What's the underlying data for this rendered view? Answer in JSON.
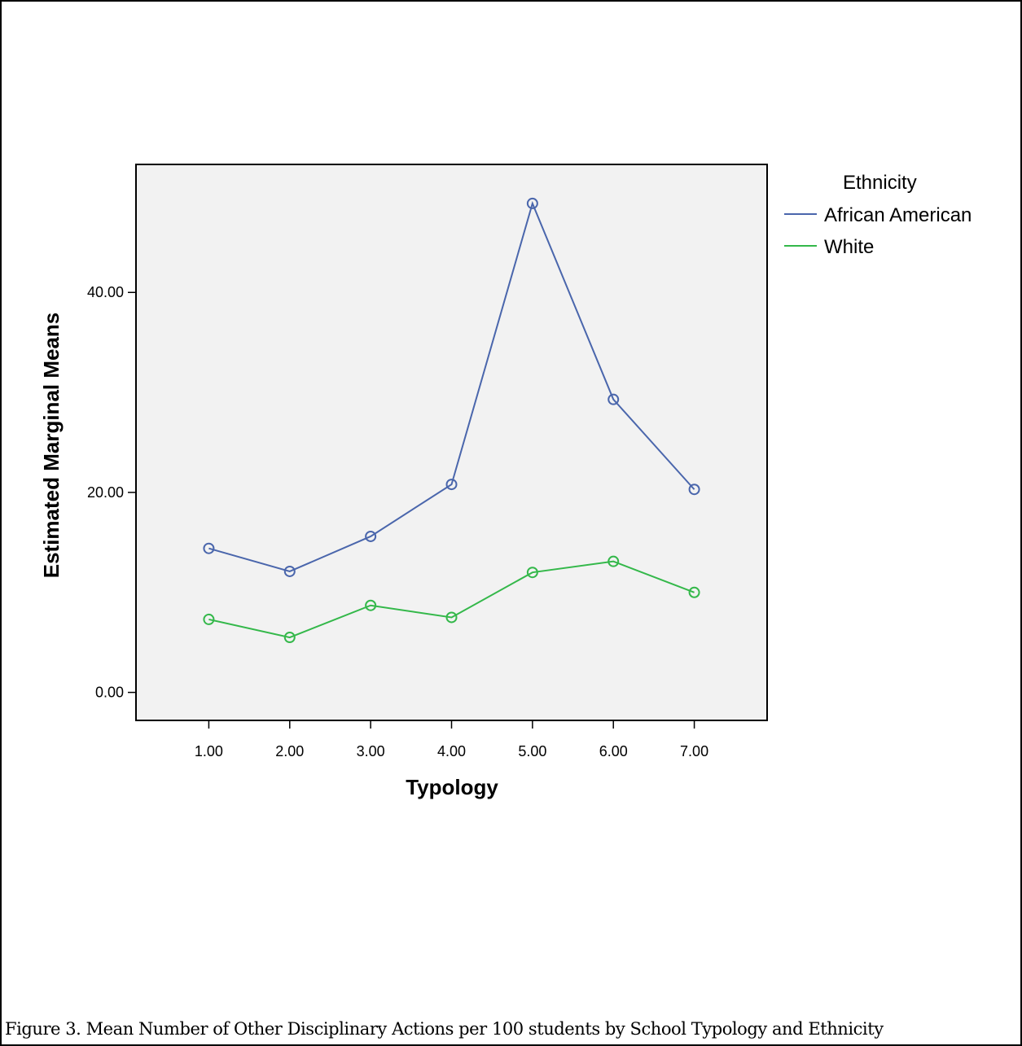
{
  "figure": {
    "caption": "Figure 3. Mean Number of Other Disciplinary Actions per 100 students by School Typology and Ethnicity"
  },
  "chart_data": {
    "type": "line",
    "title": "",
    "xlabel": "Typology",
    "ylabel": "Estimated Marginal Means",
    "categories": [
      "1.00",
      "2.00",
      "3.00",
      "4.00",
      "5.00",
      "6.00",
      "7.00"
    ],
    "x": [
      1,
      2,
      3,
      4,
      5,
      6,
      7
    ],
    "yticks": [
      "0.00",
      "20.00",
      "40.00"
    ],
    "ytick_values": [
      0,
      20,
      40
    ],
    "ylim": [
      -2.8,
      52.8
    ],
    "xlim": [
      0.1,
      7.9
    ],
    "legend": {
      "title": "Ethnicity",
      "placement": "right"
    },
    "marker": "circle",
    "plot_background": "#f2f2f2",
    "grid": false,
    "series": [
      {
        "name": "African American",
        "color": "#4a66ac",
        "values": [
          14.4,
          12.1,
          15.6,
          20.8,
          48.9,
          29.3,
          20.3
        ]
      },
      {
        "name": "White",
        "color": "#34b84a",
        "values": [
          7.3,
          5.5,
          8.7,
          7.5,
          12.0,
          13.1,
          10.0
        ]
      }
    ]
  }
}
